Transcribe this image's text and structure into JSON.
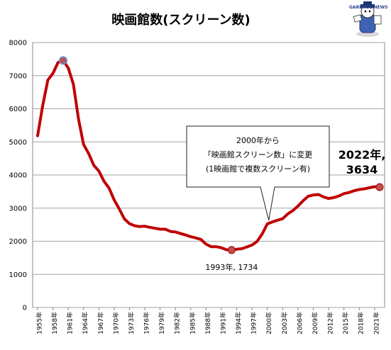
{
  "chart_data": {
    "type": "line",
    "title": "映画館数(スクリーン数)",
    "ylim": [
      0,
      8000
    ],
    "yticks": [
      0,
      1000,
      2000,
      3000,
      4000,
      5000,
      6000,
      7000,
      8000
    ],
    "grid": true,
    "line_color": "#c00000",
    "x_tick_labels": [
      "1955年",
      "1958年",
      "1961年",
      "1964年",
      "1967年",
      "1970年",
      "1973年",
      "1976年",
      "1979年",
      "1982年",
      "1985年",
      "1988年",
      "1991年",
      "1994年",
      "1997年",
      "2000年",
      "2003年",
      "2006年",
      "2009年",
      "2012年",
      "2015年",
      "2018年",
      "2021年"
    ],
    "series": [
      {
        "x": [
          1955,
          1956,
          1957,
          1958,
          1959,
          1960,
          1961,
          1962,
          1963,
          1964,
          1965,
          1966,
          1967,
          1968,
          1969,
          1970,
          1971,
          1972,
          1973,
          1974,
          1975,
          1976,
          1977,
          1978,
          1979,
          1980,
          1981,
          1982,
          1983,
          1984,
          1985,
          1986,
          1987,
          1988,
          1989,
          1990,
          1991,
          1992,
          1993,
          1994,
          1995,
          1996,
          1997,
          1998,
          1999,
          2000,
          2001,
          2002,
          2003,
          2004,
          2005,
          2006,
          2007,
          2008,
          2009,
          2010,
          2011,
          2012,
          2013,
          2014,
          2015,
          2016,
          2017,
          2018,
          2019,
          2020,
          2021,
          2022
        ],
        "y": [
          5184,
          6100,
          6865,
          7067,
          7400,
          7457,
          7231,
          6742,
          5697,
          4927,
          4649,
          4296,
          4119,
          3814,
          3602,
          3246,
          2974,
          2673,
          2531,
          2468,
          2443,
          2453,
          2420,
          2392,
          2364,
          2364,
          2298,
          2280,
          2233,
          2188,
          2137,
          2100,
          2053,
          1912,
          1836,
          1836,
          1804,
          1744,
          1734,
          1758,
          1776,
          1828,
          1884,
          1993,
          2221,
          2524,
          2585,
          2635,
          2681,
          2825,
          2926,
          3062,
          3221,
          3359,
          3396,
          3412,
          3339,
          3290,
          3318,
          3364,
          3437,
          3472,
          3525,
          3561,
          3583,
          3616,
          3648,
          3634
        ]
      }
    ],
    "highlights": [
      {
        "x": 1960,
        "y": 7457
      },
      {
        "x": 1993,
        "y": 1734
      },
      {
        "x": 2022,
        "y": 3634
      }
    ]
  },
  "annotations": {
    "min_label": "1993年, 1734",
    "last_label_line1": "2022年,",
    "last_label_line2": "3634",
    "callout_line1": "2000年から",
    "callout_line2": "「映画館スクリーン数」に変更",
    "callout_line3": "(1映画館で複数スクリーン有)"
  },
  "mascot_text": "GARBAGE NEWS"
}
